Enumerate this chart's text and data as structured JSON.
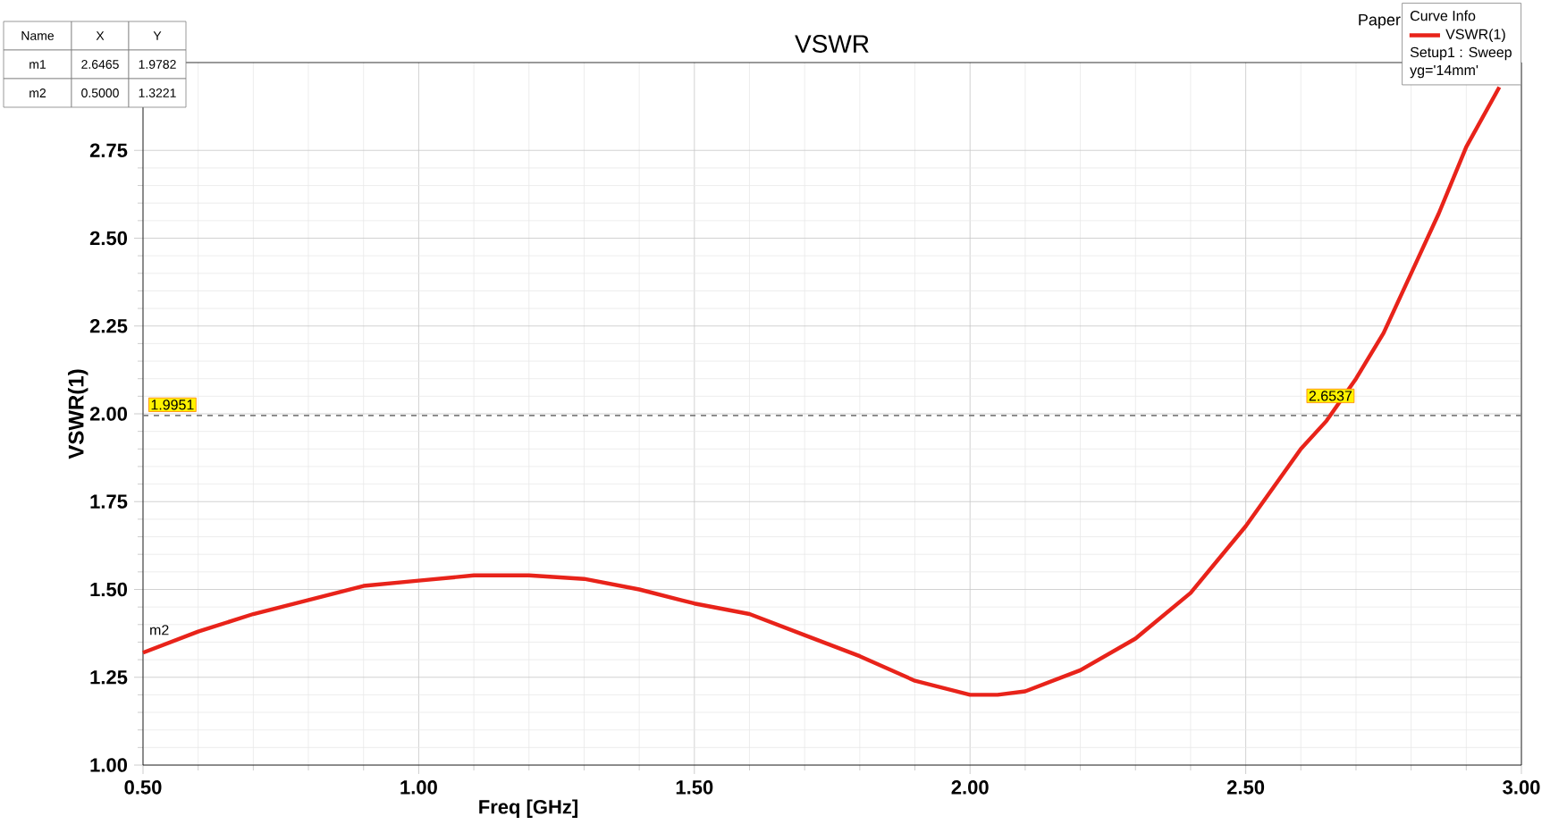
{
  "chart_data": {
    "type": "line",
    "title": "VSWR",
    "xlabel": "Freq [GHz]",
    "ylabel": "VSWR(1)",
    "legend_title": "Curve Info",
    "legend": "top right",
    "marker": "none",
    "line_style": "solid",
    "grid": true,
    "x": [
      0.5,
      0.6,
      0.7,
      0.8,
      0.9,
      1.0,
      1.1,
      1.2,
      1.3,
      1.4,
      1.5,
      1.6,
      1.7,
      1.8,
      1.9,
      2.0,
      2.05,
      2.1,
      2.2,
      2.3,
      2.4,
      2.5,
      2.6,
      2.6465,
      2.7,
      2.75,
      2.8,
      2.85,
      2.9,
      2.96
    ],
    "series": [
      {
        "name": "VSWR(1)",
        "color": "#e8231a",
        "values": [
          1.32,
          1.38,
          1.43,
          1.47,
          1.51,
          1.525,
          1.54,
          1.54,
          1.53,
          1.5,
          1.46,
          1.43,
          1.37,
          1.31,
          1.24,
          1.2,
          1.2,
          1.21,
          1.27,
          1.36,
          1.49,
          1.68,
          1.9,
          1.98,
          2.1,
          2.23,
          2.4,
          2.57,
          2.76,
          2.93
        ]
      }
    ],
    "xlim": [
      0.5,
      3.0
    ],
    "ylim": [
      1.0,
      3.0
    ],
    "xticks": [
      {
        "value": 0.5,
        "label": "0.50"
      },
      {
        "value": 1.0,
        "label": "1.00"
      },
      {
        "value": 1.5,
        "label": "1.50"
      },
      {
        "value": 2.0,
        "label": "2.00"
      },
      {
        "value": 2.5,
        "label": "2.50"
      },
      {
        "value": 3.0,
        "label": "3.00"
      }
    ],
    "yticks": [
      {
        "value": 1.0,
        "label": "1.00"
      },
      {
        "value": 1.25,
        "label": "1.25"
      },
      {
        "value": 1.5,
        "label": "1.50"
      },
      {
        "value": 1.75,
        "label": "1.75"
      },
      {
        "value": 2.0,
        "label": "2.00"
      },
      {
        "value": 2.25,
        "label": "2.25"
      },
      {
        "value": 2.5,
        "label": "2.50"
      },
      {
        "value": 2.75,
        "label": "2.75"
      }
    ],
    "ref_lines": [
      {
        "axis": "y",
        "value": 1.9951,
        "label": "1.9951",
        "line_style": "dashed",
        "color": "#808080"
      }
    ],
    "annotations": [
      "Name",
      "X",
      "Y",
      "m1",
      "2.6465",
      "1.9782",
      "m2",
      "0.5000",
      "1.3221",
      "Setup1 : Sweep",
      "yg='14mm'",
      "Paper",
      {
        "text": "2.6537",
        "x": 2.6537,
        "y": 2.0
      },
      {
        "text": "m2",
        "x": 0.5,
        "y": 1.3221
      }
    ]
  }
}
